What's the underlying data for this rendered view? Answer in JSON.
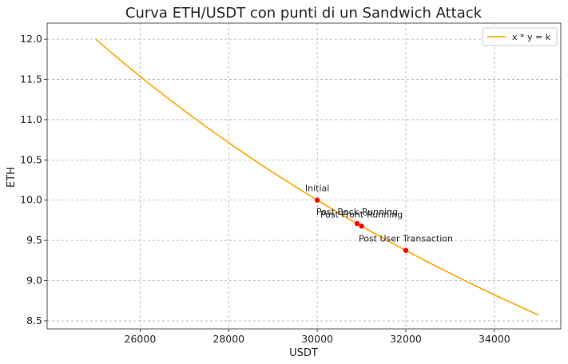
{
  "chart_data": {
    "type": "line",
    "title": "Curva ETH/USDT con punti di un Sandwich Attack",
    "xlabel": "USDT",
    "ylabel": "ETH",
    "xlim": [
      23900,
      35500
    ],
    "ylim": [
      8.4,
      12.2
    ],
    "xticks": [
      26000,
      28000,
      30000,
      32000,
      34000
    ],
    "yticks": [
      8.5,
      9.0,
      9.5,
      10.0,
      10.5,
      11.0,
      11.5,
      12.0
    ],
    "grid": true,
    "legend": {
      "position": "top-right",
      "entries": [
        "x * y = k"
      ]
    },
    "curve": {
      "name": "x * y = k",
      "color": "#ffa500",
      "k": 300000,
      "x_range": [
        25000,
        35000
      ]
    },
    "points": [
      {
        "label": "Initial",
        "x": 30000,
        "y": 10.0
      },
      {
        "label": "Post Front-Running",
        "x": 31000,
        "y": 9.677
      },
      {
        "label": "Post User Transaction",
        "x": 32000,
        "y": 9.375
      },
      {
        "label": "Post Back-Running",
        "x": 30900,
        "y": 9.709
      }
    ],
    "point_color": "#ff0000"
  }
}
